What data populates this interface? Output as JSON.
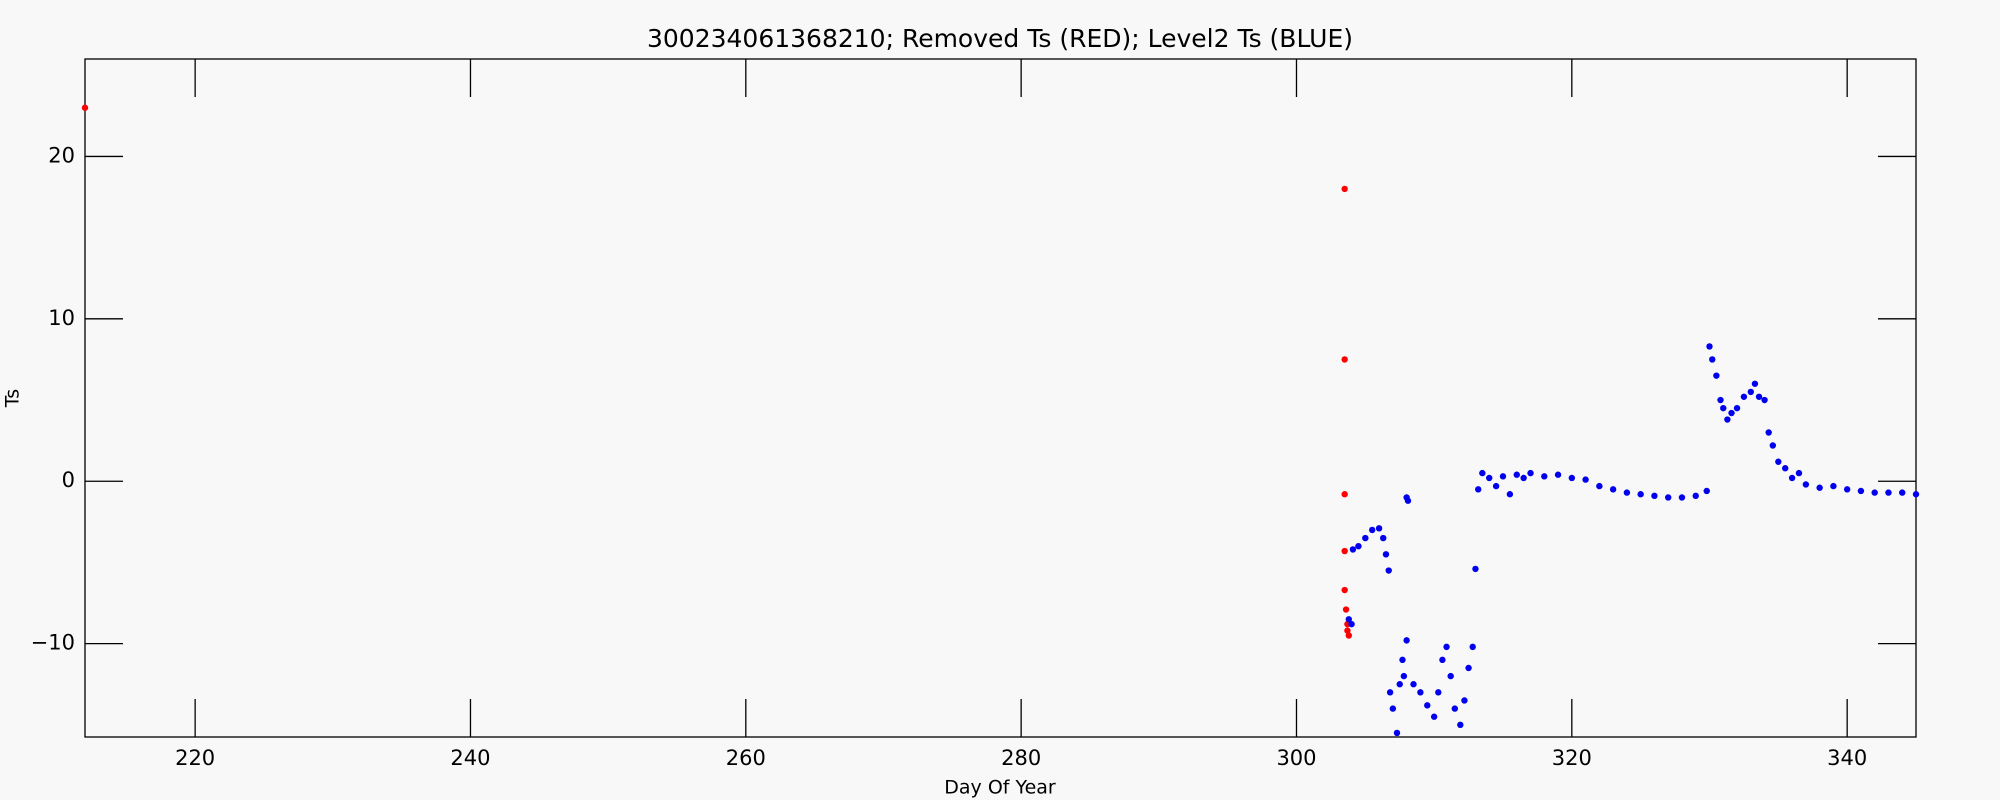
{
  "chart_data": {
    "type": "scatter",
    "title": "300234061368210; Removed Ts (RED); Level2 Ts (BLUE)",
    "xlabel": "Day Of Year",
    "ylabel": "Ts",
    "xlim": [
      212,
      345
    ],
    "ylim": [
      -15.75,
      26
    ],
    "xticks": [
      220,
      240,
      260,
      280,
      300,
      320,
      340
    ],
    "yticks": [
      {
        "value": -10,
        "label": "−10"
      },
      0,
      10,
      20
    ],
    "series": [
      {
        "name": "Removed Ts",
        "color": "#ff0000",
        "x": [
          212,
          303.5,
          303.5,
          303.5,
          303.5,
          303.5,
          303.6,
          303.7,
          303.7,
          303.8
        ],
        "y": [
          23,
          18,
          7.5,
          -0.8,
          -4.3,
          -6.7,
          -7.9,
          -8.8,
          -9.2,
          -9.5
        ]
      },
      {
        "name": "Level2 Ts",
        "color": "#0000ee",
        "x": [
          303.8,
          304,
          304.1,
          304.5,
          305,
          305.5,
          306,
          306.3,
          306.5,
          306.7,
          306.8,
          307,
          307.3,
          307.5,
          307.7,
          307.8,
          308,
          308,
          308.1,
          308.5,
          309,
          309.5,
          310,
          310.3,
          310.6,
          310.9,
          311.2,
          311.5,
          311.9,
          312.2,
          312.5,
          312.8,
          313,
          313.2,
          313.5,
          314,
          314.5,
          315,
          315.5,
          316,
          316.5,
          317,
          318,
          319,
          320,
          321,
          322,
          323,
          324,
          325,
          326,
          327,
          328,
          329,
          329.8,
          330,
          330.2,
          330.5,
          330.8,
          331,
          331.3,
          331.6,
          332,
          332.5,
          333,
          333.3,
          333.6,
          334,
          334.3,
          334.6,
          335,
          335.5,
          336,
          336.5,
          337,
          338,
          339,
          340,
          341,
          342,
          343,
          344,
          345
        ],
        "y": [
          -8.5,
          -8.8,
          -4.2,
          -4.0,
          -3.5,
          -3.0,
          -2.9,
          -3.5,
          -4.5,
          -5.5,
          -13,
          -14,
          -15.5,
          -12.5,
          -11,
          -12,
          -9.8,
          -1,
          -1.2,
          -12.5,
          -13,
          -13.8,
          -14.5,
          -13,
          -11,
          -10.2,
          -12,
          -14,
          -15,
          -13.5,
          -11.5,
          -10.2,
          -5.4,
          -0.5,
          0.5,
          0.2,
          -0.3,
          0.3,
          -0.8,
          0.4,
          0.2,
          0.5,
          0.3,
          0.4,
          0.2,
          0.1,
          -0.3,
          -0.5,
          -0.7,
          -0.8,
          -0.9,
          -1.0,
          -1.0,
          -0.9,
          -0.6,
          8.3,
          7.5,
          6.5,
          5,
          4.5,
          3.8,
          4.2,
          4.5,
          5.2,
          5.5,
          6,
          5.2,
          5,
          3,
          2.2,
          1.2,
          0.8,
          0.2,
          0.5,
          -0.2,
          -0.4,
          -0.3,
          -0.5,
          -0.6,
          -0.7,
          -0.7,
          -0.7,
          -0.8
        ]
      }
    ]
  }
}
